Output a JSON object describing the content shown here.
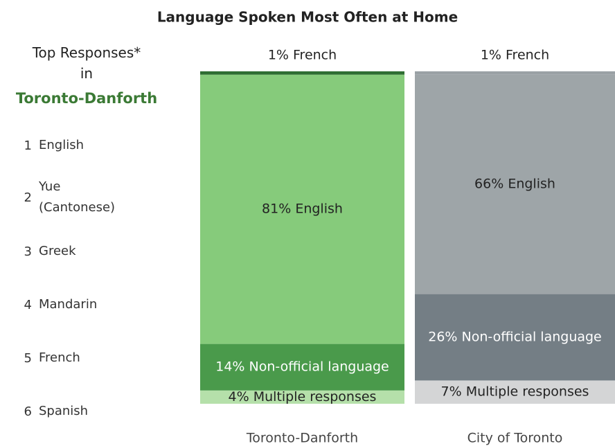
{
  "chart_data": {
    "type": "stacked_bar",
    "title": "Language Spoken Most Often at Home",
    "categories": [
      "Toronto-Danforth",
      "City of Toronto"
    ],
    "ylim": [
      0,
      100
    ],
    "series": [
      {
        "colors": [
          "#2f6e33",
          "#9aa1a5"
        ],
        "label_color": "#222222",
        "label_position": "above",
        "values": [
          1,
          1
        ],
        "value_labels": [
          "1% French",
          "1% French"
        ]
      },
      {
        "colors": [
          "#86cb7b",
          "#9ea5a8"
        ],
        "label_color": "#222222",
        "values": [
          81,
          66
        ],
        "value_labels": [
          "81% English",
          "66% English"
        ]
      },
      {
        "colors": [
          "#4a9a4b",
          "#747e85"
        ],
        "label_color": "#ffffff",
        "values": [
          14,
          26
        ],
        "value_labels": [
          "14% Non-official language",
          "26% Non-official language"
        ]
      },
      {
        "colors": [
          "#b5e0aa",
          "#d4d5d6"
        ],
        "label_color": "#222222",
        "values": [
          4,
          7
        ],
        "value_labels": [
          "4% Multiple responses",
          "7% Multiple responses"
        ]
      }
    ]
  },
  "panel": {
    "heading": "Top Responses*",
    "connector": "in",
    "place": "Toronto-Danforth",
    "items": [
      {
        "rank": 1,
        "label": "English"
      },
      {
        "rank": 2,
        "label": "Yue (Cantonese)"
      },
      {
        "rank": 3,
        "label": "Greek"
      },
      {
        "rank": 4,
        "label": "Mandarin"
      },
      {
        "rank": 5,
        "label": "French"
      },
      {
        "rank": 6,
        "label": "Spanish"
      }
    ]
  }
}
